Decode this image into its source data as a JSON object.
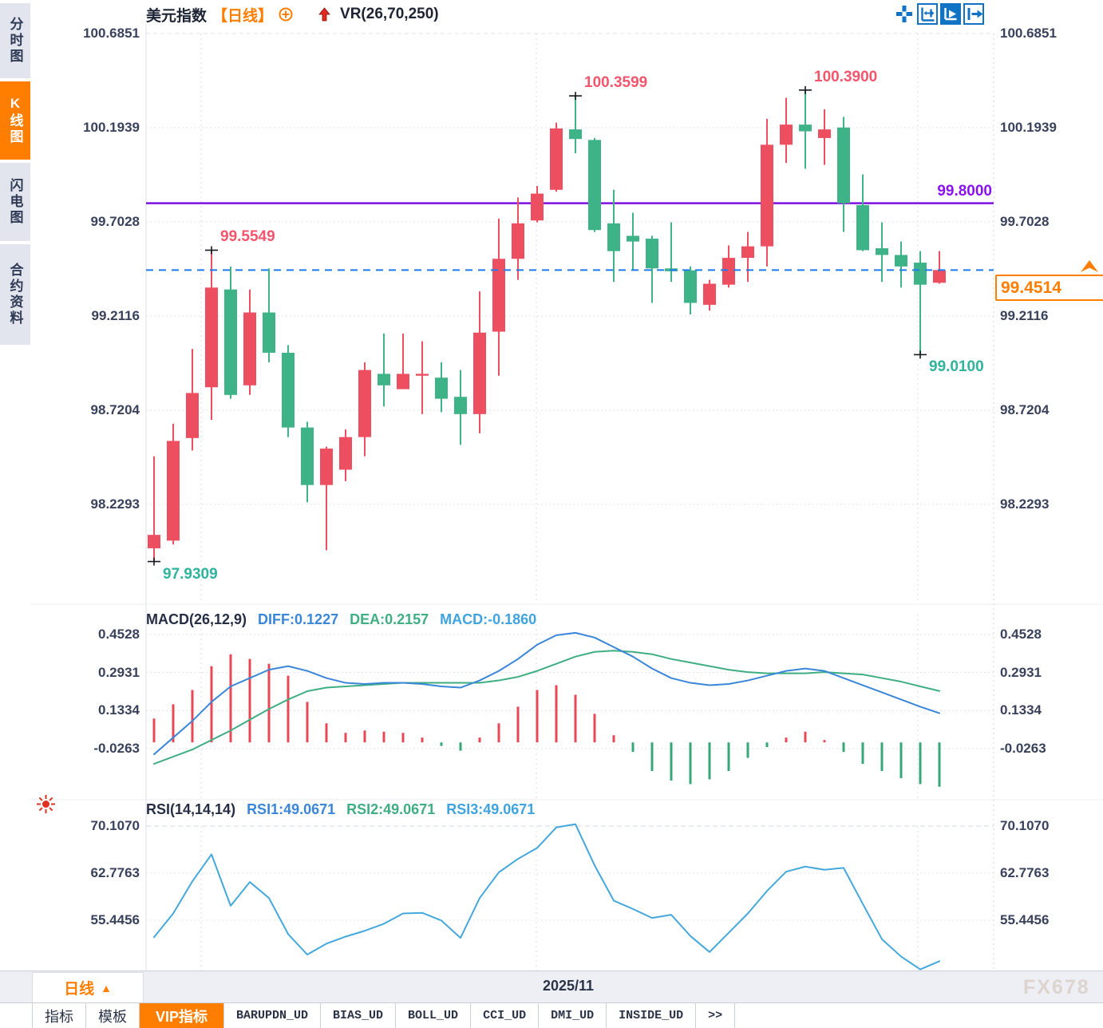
{
  "window": {
    "watermark": "FX678"
  },
  "sidebar": {
    "items": [
      {
        "label": "分时图",
        "active": false
      },
      {
        "label": "K线图",
        "active": true
      },
      {
        "label": "闪电图",
        "active": false
      },
      {
        "label": "合约资料",
        "active": false
      }
    ]
  },
  "header": {
    "symbol": "美元指数",
    "period": "【日线】",
    "indicator": "VR(26,70,250)"
  },
  "toolbar": {
    "icons": [
      "move-crosshair",
      "zoom-axes",
      "play-axes",
      "pan-exit"
    ]
  },
  "chart_data": {
    "type": "candlestick",
    "title": "美元指数 日线",
    "up_color": "#ee4f60",
    "down_color": "#3eb387",
    "y_axis_labels": [
      "100.6851",
      "100.1939",
      "99.7028",
      "99.2116",
      "98.7204",
      "98.2293"
    ],
    "y_axis_values": [
      100.6851,
      100.1939,
      99.7028,
      99.2116,
      98.7204,
      98.2293
    ],
    "candles_ohlc": [
      [
        98.0,
        98.48,
        97.9309,
        98.07
      ],
      [
        98.04,
        98.65,
        98.02,
        98.56
      ],
      [
        98.575,
        99.04,
        98.51,
        98.81
      ],
      [
        98.84,
        99.5549,
        98.67,
        99.36
      ],
      [
        99.35,
        99.47,
        98.78,
        98.8
      ],
      [
        98.85,
        99.35,
        98.8,
        99.23
      ],
      [
        99.23,
        99.46,
        98.97,
        99.02
      ],
      [
        99.02,
        99.06,
        98.58,
        98.63
      ],
      [
        98.63,
        98.66,
        98.24,
        98.33
      ],
      [
        98.33,
        98.53,
        97.99,
        98.52
      ],
      [
        98.41,
        98.62,
        98.35,
        98.58
      ],
      [
        98.58,
        98.97,
        98.48,
        98.93
      ],
      [
        98.91,
        99.12,
        98.74,
        98.85
      ],
      [
        98.83,
        99.12,
        98.83,
        98.91
      ],
      [
        98.9,
        99.08,
        98.7,
        98.91
      ],
      [
        98.89,
        98.97,
        98.71,
        98.78
      ],
      [
        98.79,
        98.93,
        98.54,
        98.7
      ],
      [
        98.7,
        99.34,
        98.6,
        99.125
      ],
      [
        99.13,
        99.72,
        98.9,
        99.51
      ],
      [
        99.51,
        99.83,
        99.4,
        99.695
      ],
      [
        99.71,
        99.89,
        99.7,
        99.85
      ],
      [
        99.87,
        100.22,
        99.86,
        100.19
      ],
      [
        100.185,
        100.3599,
        100.06,
        100.135
      ],
      [
        100.13,
        100.14,
        99.65,
        99.66
      ],
      [
        99.695,
        99.87,
        99.39,
        99.55
      ],
      [
        99.63,
        99.75,
        99.45,
        99.6
      ],
      [
        99.615,
        99.63,
        99.28,
        99.46
      ],
      [
        99.46,
        99.7,
        99.39,
        99.445
      ],
      [
        99.45,
        99.47,
        99.22,
        99.28
      ],
      [
        99.27,
        99.4,
        99.24,
        99.38
      ],
      [
        99.375,
        99.58,
        99.36,
        99.515
      ],
      [
        99.515,
        99.65,
        99.39,
        99.575
      ],
      [
        99.575,
        100.24,
        99.47,
        100.105
      ],
      [
        100.105,
        100.35,
        100.01,
        100.21
      ],
      [
        100.21,
        100.39,
        99.98,
        100.175
      ],
      [
        100.14,
        100.29,
        100.0,
        100.185
      ],
      [
        100.195,
        100.25,
        99.65,
        99.8
      ],
      [
        99.79,
        99.95,
        99.55,
        99.555
      ],
      [
        99.565,
        99.7,
        99.39,
        99.53
      ],
      [
        99.53,
        99.6,
        99.36,
        99.47
      ],
      [
        99.49,
        99.55,
        99.01,
        99.375
      ],
      [
        99.385,
        99.55,
        99.38,
        99.4514
      ]
    ],
    "annotations": [
      {
        "index": 3,
        "at": "high",
        "label": "99.5549",
        "color": "#f4556d"
      },
      {
        "index": 0,
        "at": "low",
        "label": "97.9309",
        "color": "#2fb39d"
      },
      {
        "index": 22,
        "at": "high",
        "label": "100.3599",
        "color": "#f4556d"
      },
      {
        "index": 34,
        "at": "high",
        "label": "100.3900",
        "color": "#f4556d"
      },
      {
        "index": 40,
        "at": "low",
        "label": "99.0100",
        "color": "#2fb39d"
      }
    ],
    "level_line": {
      "value": 99.8,
      "label": "99.8000",
      "color": "#7d0fe0"
    },
    "last_price": {
      "value": 99.4514,
      "label": "99.4514",
      "color": "#ff7e00"
    },
    "month_label": "2025/11",
    "macd": {
      "title": "MACD(26,12,9)",
      "diff_label": "DIFF:0.1227",
      "dea_label": "DEA:0.2157",
      "macd_label": "MACD:-0.1860",
      "y_axis_labels": [
        "0.4528",
        "0.2931",
        "0.1334",
        "-0.0263"
      ],
      "y_axis_values": [
        0.4528,
        0.2931,
        0.1334,
        -0.0263
      ],
      "diff": [
        -0.05,
        0.02,
        0.09,
        0.17,
        0.235,
        0.27,
        0.305,
        0.32,
        0.3,
        0.27,
        0.25,
        0.245,
        0.25,
        0.25,
        0.245,
        0.235,
        0.23,
        0.26,
        0.3,
        0.35,
        0.41,
        0.45,
        0.46,
        0.44,
        0.4,
        0.36,
        0.31,
        0.27,
        0.25,
        0.24,
        0.245,
        0.26,
        0.28,
        0.3,
        0.31,
        0.3,
        0.27,
        0.24,
        0.21,
        0.18,
        0.15,
        0.1227
      ],
      "dea": [
        -0.09,
        -0.06,
        -0.03,
        0.01,
        0.05,
        0.095,
        0.14,
        0.18,
        0.215,
        0.23,
        0.235,
        0.24,
        0.245,
        0.25,
        0.25,
        0.25,
        0.25,
        0.25,
        0.26,
        0.275,
        0.3,
        0.33,
        0.36,
        0.38,
        0.385,
        0.38,
        0.37,
        0.35,
        0.335,
        0.32,
        0.305,
        0.295,
        0.29,
        0.29,
        0.29,
        0.295,
        0.29,
        0.285,
        0.27,
        0.255,
        0.235,
        0.2157
      ],
      "hist": [
        0.1,
        0.16,
        0.22,
        0.32,
        0.37,
        0.35,
        0.33,
        0.28,
        0.17,
        0.08,
        0.04,
        0.05,
        0.045,
        0.04,
        0.02,
        -0.015,
        -0.035,
        0.02,
        0.08,
        0.15,
        0.22,
        0.24,
        0.2,
        0.12,
        0.03,
        -0.04,
        -0.12,
        -0.16,
        -0.175,
        -0.155,
        -0.12,
        -0.065,
        -0.02,
        0.02,
        0.045,
        0.01,
        -0.04,
        -0.09,
        -0.12,
        -0.15,
        -0.175,
        -0.186
      ]
    },
    "rsi": {
      "title": "RSI(14,14,14)",
      "rsi1_label": "RSI1:49.0671",
      "rsi2_label": "RSI2:49.0671",
      "rsi3_label": "RSI3:49.0671",
      "y_axis_labels": [
        "70.1070",
        "62.7763",
        "55.4456"
      ],
      "y_axis_values": [
        70.107,
        62.7763,
        55.4456
      ],
      "values": [
        52.8,
        56.5,
        61.5,
        65.7,
        57.7,
        61.4,
        58.9,
        53.3,
        50.1,
        51.8,
        52.9,
        53.8,
        54.9,
        56.5,
        56.6,
        55.4,
        52.7,
        58.9,
        62.9,
        65.0,
        66.7,
        69.9,
        70.4,
        64.0,
        58.5,
        57.2,
        55.8,
        56.3,
        53.0,
        50.5,
        53.5,
        56.5,
        60.0,
        63.0,
        63.8,
        63.3,
        63.6,
        58.0,
        52.5,
        49.8,
        47.8,
        49.0671
      ]
    }
  },
  "bottom": {
    "period_label": "日线",
    "date_label": "2025/11",
    "tabs": [
      {
        "label": "指标"
      },
      {
        "label": "模板"
      },
      {
        "label": "VIP指标",
        "active": true
      },
      {
        "label": "BARUPDN_UD",
        "mono": true
      },
      {
        "label": "BIAS_UD",
        "mono": true
      },
      {
        "label": "BOLL_UD",
        "mono": true
      },
      {
        "label": "CCI_UD",
        "mono": true
      },
      {
        "label": "DMI_UD",
        "mono": true
      },
      {
        "label": "INSIDE_UD",
        "mono": true
      },
      {
        "label": ">>",
        "mono": true
      }
    ]
  }
}
